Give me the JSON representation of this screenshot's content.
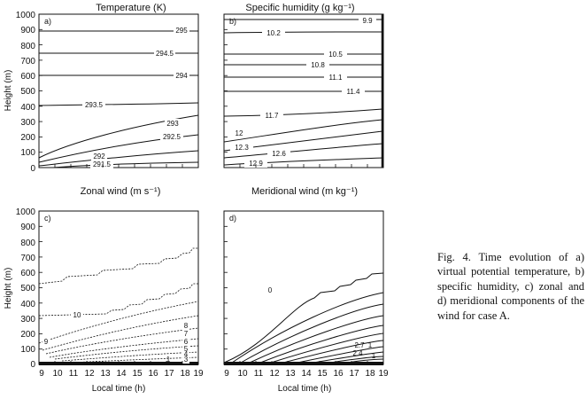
{
  "panels": [
    {
      "id": "a",
      "title": "Temperature (K)",
      "panel_label": "a)",
      "ylabel": "Height (m)",
      "xlabel": "",
      "contour_labels": [
        "295",
        "294.5",
        "294",
        "293.5",
        "293",
        "292.5",
        "292",
        "291.5"
      ]
    },
    {
      "id": "b",
      "title": "Specific humidity (g kg⁻¹)",
      "panel_label": "b)",
      "ylabel": "",
      "xlabel": "",
      "contour_labels": [
        "9.9",
        "10.2",
        "10.5",
        "10.8",
        "11.1",
        "11.4",
        "11.7",
        "12",
        "12.3",
        "12.6",
        "12.9"
      ]
    },
    {
      "id": "c",
      "title": "Zonal wind (m s⁻¹)",
      "panel_label": "c)",
      "ylabel": "Height (m)",
      "xlabel": "Local time  (h)",
      "contour_labels": [
        "10",
        "9",
        "8",
        "7",
        "6",
        "5",
        "4",
        "3",
        "1"
      ]
    },
    {
      "id": "d",
      "title": "Meridional wind (m kg⁻¹)",
      "panel_label": "d)",
      "ylabel": "",
      "xlabel": "Local time (h)",
      "contour_labels": [
        "0",
        "2.7",
        "1",
        "2.4",
        "1"
      ]
    }
  ],
  "axes": {
    "y_ticks": [
      "1000",
      "900",
      "800",
      "700",
      "600",
      "500",
      "400",
      "300",
      "200",
      "100",
      "0"
    ],
    "x_ticks": [
      "9",
      "10",
      "11",
      "12",
      "13",
      "14",
      "15",
      "16",
      "17",
      "18",
      "19"
    ]
  },
  "caption": "Fig. 4. Time evolution of a) virtual potential temperature, b) specific humidity, c) zonal and d) meridional components of the wind for case A."
}
